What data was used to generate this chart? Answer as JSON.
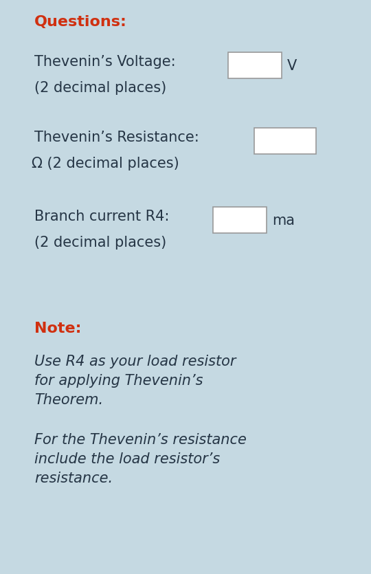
{
  "background_color": "#c5d9e2",
  "title": "Questions:",
  "title_color": "#d03010",
  "title_fontsize": 16,
  "q1_label": "Thevenin’s Voltage:",
  "q1_sub": "(2 decimal places)",
  "q1_unit": "V",
  "q2_label": "Thevenin’s Resistance:",
  "q2_sub": "Ω (2 decimal places)",
  "q3_label": "Branch current R4:",
  "q3_sub": "(2 decimal places)",
  "q3_unit": "ma",
  "note_label": "Note:",
  "note_color": "#d03010",
  "note_fontsize": 16,
  "note1_line1": "Use R4 as your load resistor",
  "note1_line2": "for applying Thevenin’s",
  "note1_line3": "Theorem.",
  "note2_line1": "For the Thevenin’s resistance",
  "note2_line2": "include the load resistor’s",
  "note2_line3": "resistance.",
  "text_color": "#253545",
  "body_fontsize": 15,
  "italic_fontsize": 15,
  "box_color": "#ffffff",
  "box_edge_color": "#999999",
  "fig_width": 5.4,
  "fig_height": 8.35,
  "dpi": 100
}
